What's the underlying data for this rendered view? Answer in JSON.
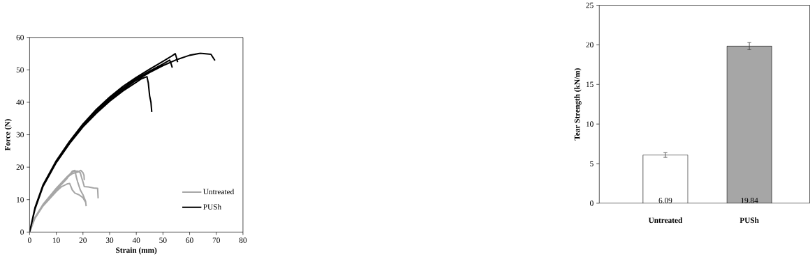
{
  "chart_data": [
    {
      "type": "line",
      "xlabel": "Strain (mm)",
      "ylabel": "Force (N)",
      "xlim": [
        0,
        80
      ],
      "ylim": [
        0,
        60
      ],
      "xticks": [
        0,
        10,
        20,
        30,
        40,
        50,
        60,
        70,
        80
      ],
      "yticks": [
        0,
        10,
        20,
        30,
        40,
        50,
        60
      ],
      "grid": false,
      "legend": "bottom right",
      "marker": "none",
      "line_style": "solid",
      "series": [
        {
          "name": "Untreated",
          "color": "#a6a6a6",
          "x": [
            0,
            2,
            5,
            10,
            14,
            16,
            17,
            18,
            19,
            19.5,
            20,
            20.5,
            22,
            24,
            25.5,
            25.7,
            null,
            0,
            2,
            5,
            10,
            14,
            16,
            17,
            17.5,
            18,
            19,
            20,
            21,
            21.2,
            null,
            0,
            2,
            5,
            10,
            12,
            14,
            15,
            15.5,
            16,
            17,
            18.5,
            20,
            21,
            null,
            0,
            2,
            5,
            10,
            14,
            16,
            18,
            19.2,
            20,
            20.4,
            20.5
          ],
          "values": [
            0,
            4.5,
            8.5,
            13.5,
            17,
            18.5,
            18.8,
            18.8,
            18.3,
            16.8,
            15.5,
            14,
            13.9,
            13.6,
            13.5,
            10.4,
            null,
            0,
            4.3,
            8.2,
            13,
            16.5,
            18.8,
            19,
            17,
            15.5,
            13,
            11.5,
            9.5,
            8,
            null,
            0,
            4.2,
            8,
            12.5,
            14,
            14.8,
            15,
            14,
            13,
            12,
            11.5,
            10.6,
            9.2,
            null,
            0,
            4.4,
            8.4,
            13.2,
            16.8,
            18,
            18.5,
            19,
            18.3,
            17.5,
            16
          ]
        },
        {
          "name": "PUSh",
          "color": "#000000",
          "x": [
            0,
            2,
            5,
            10,
            15,
            20,
            25,
            30,
            35,
            40,
            45,
            50,
            55,
            60,
            64,
            68,
            69,
            69.5,
            null,
            0,
            2,
            5,
            10,
            15,
            20,
            25,
            30,
            35,
            40,
            45,
            50,
            53,
            54.6,
            55,
            55.5,
            null,
            0,
            2,
            5,
            10,
            15,
            20,
            25,
            30,
            35,
            40,
            45,
            50,
            52.5,
            53,
            53.5,
            null,
            0,
            2,
            5,
            10,
            15,
            20,
            25,
            30,
            35,
            40,
            42,
            44,
            44.5,
            45,
            45.5,
            45.8
          ],
          "values": [
            0,
            7,
            14,
            21.5,
            27.5,
            32.6,
            37,
            40.8,
            44,
            46.8,
            49.2,
            51.3,
            53.1,
            54.5,
            55.1,
            54.8,
            53.5,
            52.9,
            null,
            0,
            7.5,
            14.5,
            22,
            28,
            33.3,
            37.8,
            41.6,
            44.9,
            47.7,
            50.2,
            52.6,
            54.1,
            55,
            54,
            52.4,
            null,
            0,
            7.3,
            14.2,
            21.8,
            27.8,
            33,
            37.3,
            41.1,
            44.3,
            47.2,
            49.6,
            51.8,
            53,
            52,
            50.7,
            null,
            0,
            7.2,
            14,
            21.4,
            27.3,
            32.4,
            36.6,
            40.3,
            43.5,
            46.2,
            47.3,
            47.9,
            46,
            42,
            40,
            37
          ]
        }
      ]
    },
    {
      "type": "bar",
      "ylabel": "Tear Strength (kN/m)",
      "categories": [
        "Untreated",
        "PUSh"
      ],
      "values": [
        6.09,
        19.84
      ],
      "colors": [
        "#ffffff",
        "#a6a6a6"
      ],
      "errors": [
        0.3,
        0.45
      ],
      "ylim": [
        0,
        25
      ],
      "yticks": [
        0,
        5,
        10,
        15,
        20,
        25
      ],
      "grid": false,
      "data_labels": true,
      "value_labels": [
        "6.09",
        "19.84"
      ]
    }
  ]
}
